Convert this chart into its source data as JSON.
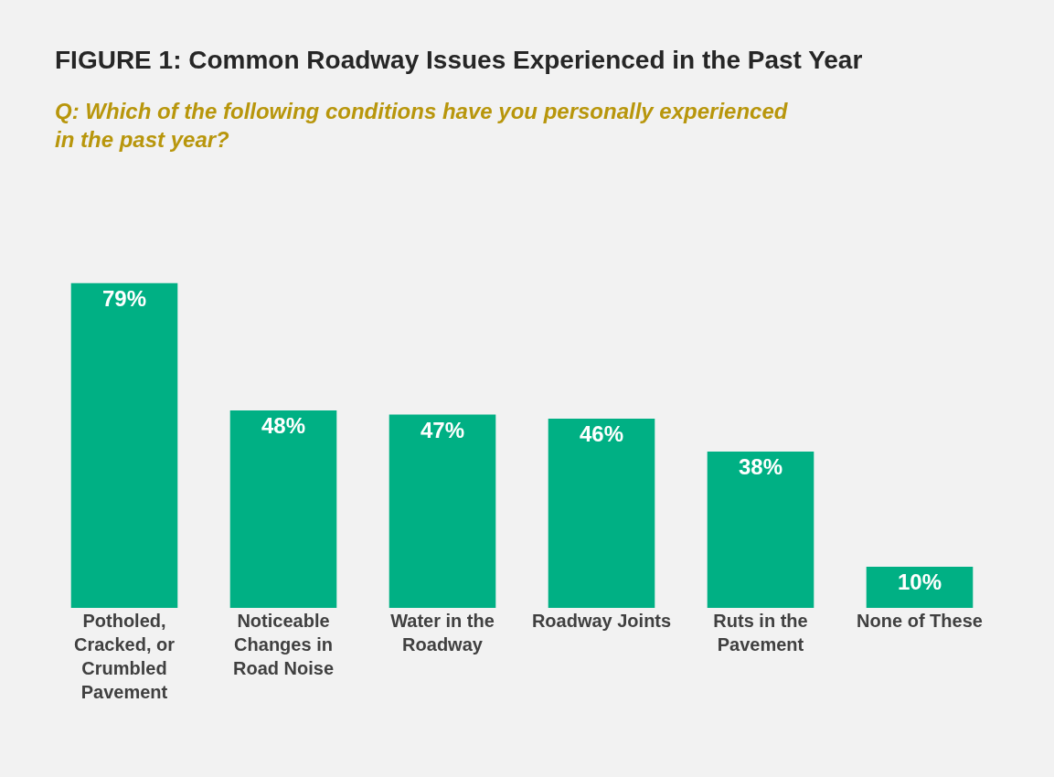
{
  "chart_data": {
    "type": "bar",
    "title": "FIGURE 1: Common Roadway Issues Experienced in the Past Year",
    "subtitle": "Q: Which of the following conditions have you personally experienced in the past year?",
    "categories": [
      "Potholed, Cracked, or Crumbled Pavement",
      "Noticeable Changes in Road Noise",
      "Water in the Roadway",
      "Roadway Joints",
      "Ruts in the Pavement",
      "None of These"
    ],
    "values": [
      79,
      48,
      47,
      46,
      38,
      10
    ],
    "value_labels": [
      "79%",
      "48%",
      "47%",
      "46%",
      "38%",
      "10%"
    ],
    "color": "#00b084",
    "grid": false,
    "legend": false
  }
}
